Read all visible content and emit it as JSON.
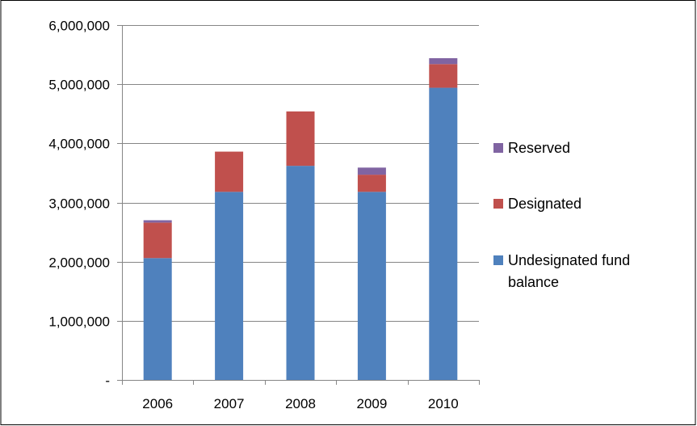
{
  "chart_data": {
    "type": "bar",
    "stacked": true,
    "title": "",
    "xlabel": "",
    "ylabel": "",
    "categories": [
      "2006",
      "2007",
      "2008",
      "2009",
      "2010"
    ],
    "ylim": [
      0,
      6000000
    ],
    "yticks": [
      {
        "value": 0,
        "label": "-"
      },
      {
        "value": 1000000,
        "label": "1,000,000"
      },
      {
        "value": 2000000,
        "label": "2,000,000"
      },
      {
        "value": 3000000,
        "label": "3,000,000"
      },
      {
        "value": 4000000,
        "label": "4,000,000"
      },
      {
        "value": 5000000,
        "label": "5,000,000"
      },
      {
        "value": 6000000,
        "label": "6,000,000"
      }
    ],
    "grid": true,
    "legend_position": "right",
    "series": [
      {
        "name": "Undesignated fund balance",
        "color": "#4F81BD",
        "values": [
          2060000,
          3180000,
          3620000,
          3180000,
          4940000
        ]
      },
      {
        "name": "Designated",
        "color": "#C0504D",
        "values": [
          600000,
          680000,
          920000,
          290000,
          400000
        ]
      },
      {
        "name": "Reserved",
        "color": "#8064A2",
        "values": [
          40000,
          0,
          0,
          120000,
          100000
        ]
      }
    ],
    "legend": [
      {
        "name_lines": [
          "Reserved"
        ],
        "color": "#8064A2"
      },
      {
        "name_lines": [
          "Designated"
        ],
        "color": "#C0504D"
      },
      {
        "name_lines": [
          "Undesignated fund",
          "balance"
        ],
        "color": "#4F81BD"
      }
    ]
  }
}
